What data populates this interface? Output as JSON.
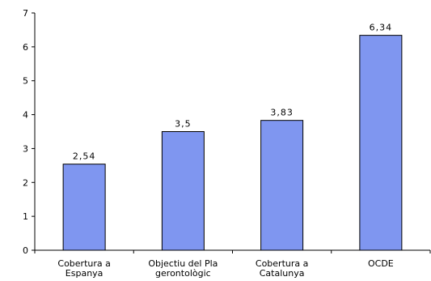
{
  "chart_data": {
    "type": "bar",
    "categories": [
      [
        "Cobertura  a",
        "Espanya"
      ],
      [
        "Objectiu del Pla",
        "gerontològic"
      ],
      [
        "Cobertura  a",
        "Catalunya"
      ],
      [
        "OCDE"
      ]
    ],
    "values": [
      2.54,
      3.5,
      3.83,
      6.34
    ],
    "data_labels": [
      "2,54",
      "3,5",
      "3,83",
      "6,34"
    ],
    "yticks": [
      "0",
      "1",
      "2",
      "3",
      "4",
      "5",
      "6",
      "7"
    ],
    "ylim": [
      0,
      7
    ],
    "title": "",
    "xlabel": "",
    "ylabel": "",
    "grid": false,
    "legend": "none",
    "colors": {
      "bar_fill": "#7f96f0",
      "bar_stroke": "#000000",
      "axis": "#000000"
    }
  }
}
